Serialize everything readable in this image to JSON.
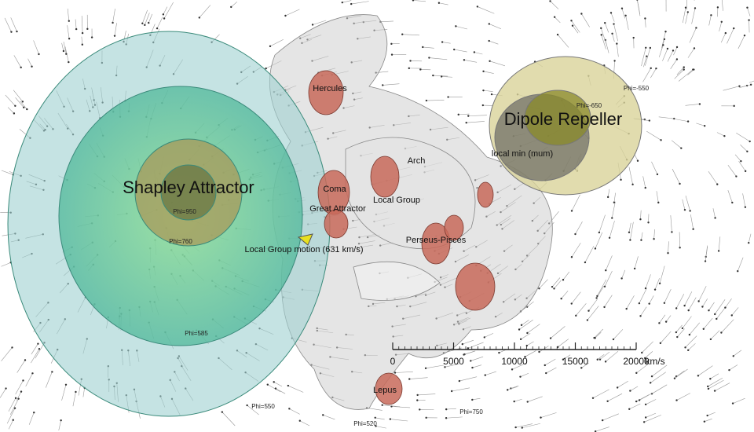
{
  "labels": {
    "shapley": "Shapley Attractor",
    "dipole": "Dipole Repeller",
    "hercules": "Hercules",
    "coma": "Coma",
    "arch": "Arch",
    "local_group": "Local Group",
    "great_attractor": "Great Attractor",
    "perseus_pisces": "Perseus-Pisces",
    "local_group_motion": "Local Group motion (631 km/s)",
    "local_min": "local min (mum)",
    "lepus": "Lepus"
  },
  "potentials": [
    "Phi=-550",
    "Phi=-650",
    "Phi=950",
    "Phi=760",
    "Phi=585",
    "Phi=550",
    "Phi=520",
    "Phi=750"
  ],
  "scale": {
    "ticks": [
      0,
      5000,
      10000,
      15000,
      20000
    ],
    "unit": "km/s"
  }
}
